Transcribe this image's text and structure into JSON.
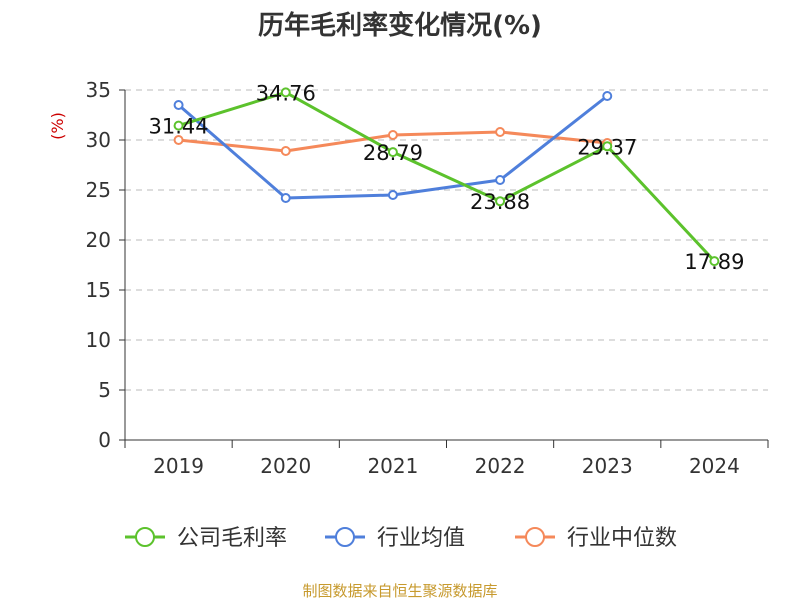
{
  "chart_data": {
    "type": "line",
    "title": "历年毛利率变化情况(%)",
    "ylabel": "(%)",
    "ylim": [
      0,
      35
    ],
    "yticks": [
      0,
      5,
      10,
      15,
      20,
      25,
      30,
      35
    ],
    "categories": [
      "2019",
      "2020",
      "2021",
      "2022",
      "2023",
      "2024"
    ],
    "grid": true,
    "legend_position": "bottom",
    "series": [
      {
        "name": "公司毛利率",
        "color": "#5cc22c",
        "values": [
          31.44,
          34.76,
          28.79,
          23.88,
          29.37,
          17.89
        ],
        "labels": [
          "31.44",
          "34.76",
          "28.79",
          "23.88",
          "29.37",
          "17.89"
        ]
      },
      {
        "name": "行业均值",
        "color": "#4f7fdb",
        "values": [
          33.5,
          24.2,
          24.5,
          26.0,
          34.4,
          null
        ]
      },
      {
        "name": "行业中位数",
        "color": "#f5895a",
        "values": [
          30.0,
          28.9,
          30.5,
          30.8,
          29.7,
          null
        ]
      }
    ],
    "source": "制图数据来自恒生聚源数据库"
  }
}
